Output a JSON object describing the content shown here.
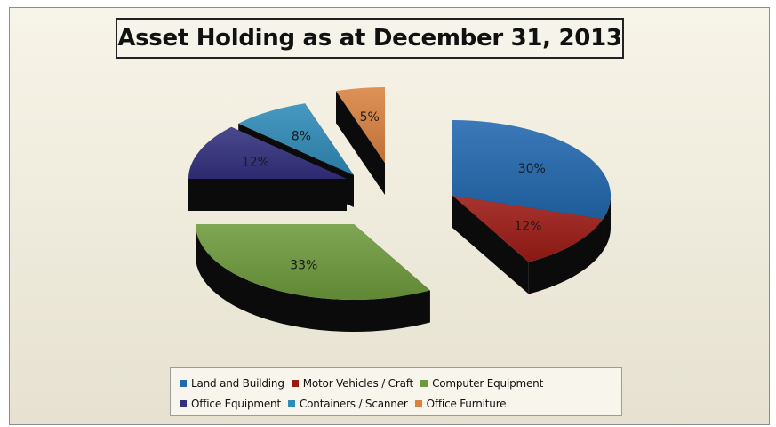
{
  "chart_data": {
    "type": "pie",
    "style": "3d-exploded",
    "title": "Asset Holding as at December 31, 2013",
    "slices": [
      {
        "name": "Land and Building",
        "value": 30,
        "label": "30%",
        "color": "#2167ae"
      },
      {
        "name": "Motor Vehicles / Craft",
        "value": 12,
        "label": "12%",
        "color": "#9c1a14"
      },
      {
        "name": "Computer Equipment",
        "value": 33,
        "label": "33%",
        "color": "#6e9a3b"
      },
      {
        "name": "Office Equipment",
        "value": 12,
        "label": "12%",
        "color": "#33307e"
      },
      {
        "name": "Containers / Scanner",
        "value": 8,
        "label": "8%",
        "color": "#2f8bb8"
      },
      {
        "name": "Office Furniture",
        "value": 5,
        "label": "5%",
        "color": "#d9823f"
      }
    ],
    "legend_position": "bottom"
  }
}
